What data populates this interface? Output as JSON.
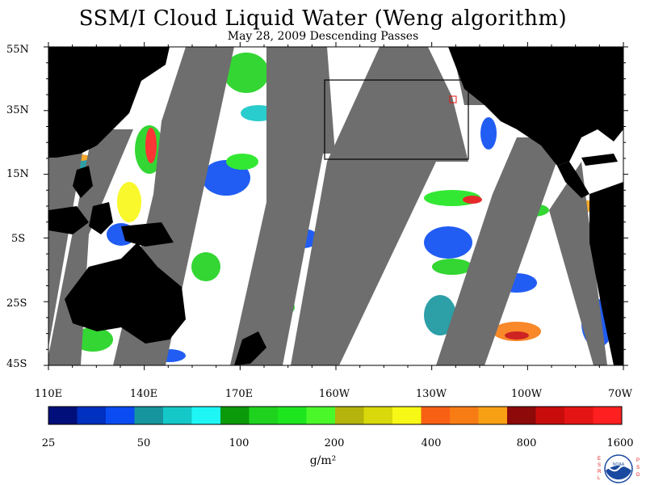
{
  "title": "SSM/I Cloud Liquid Water (Weng algorithm)",
  "subtitle": "May 28, 2009  Descending Passes",
  "lat_labels": [
    "55N",
    "35N",
    "15N",
    "5S",
    "25S",
    "45S"
  ],
  "lon_labels": [
    "110E",
    "140E",
    "170E",
    "160W",
    "130W",
    "100W",
    "70W"
  ],
  "colorbar": {
    "colors": [
      "#000f7a",
      "#0030c0",
      "#0a4cf2",
      "#16959e",
      "#14c8c8",
      "#1ef6f6",
      "#0a9a0a",
      "#1ed21e",
      "#1ee61e",
      "#4af82a",
      "#b4b40c",
      "#d8d80a",
      "#f8f816",
      "#f86014",
      "#f87c14",
      "#f8a014",
      "#8c0a0a",
      "#c80c0c",
      "#e41414",
      "#fe2020"
    ],
    "labels": [
      "25",
      "50",
      "100",
      "200",
      "400",
      "800",
      "1600"
    ],
    "units": "g/m²"
  },
  "logo": {
    "left_letters": "ESRL",
    "right_letters": "PSD",
    "center_text": "NOAA"
  }
}
